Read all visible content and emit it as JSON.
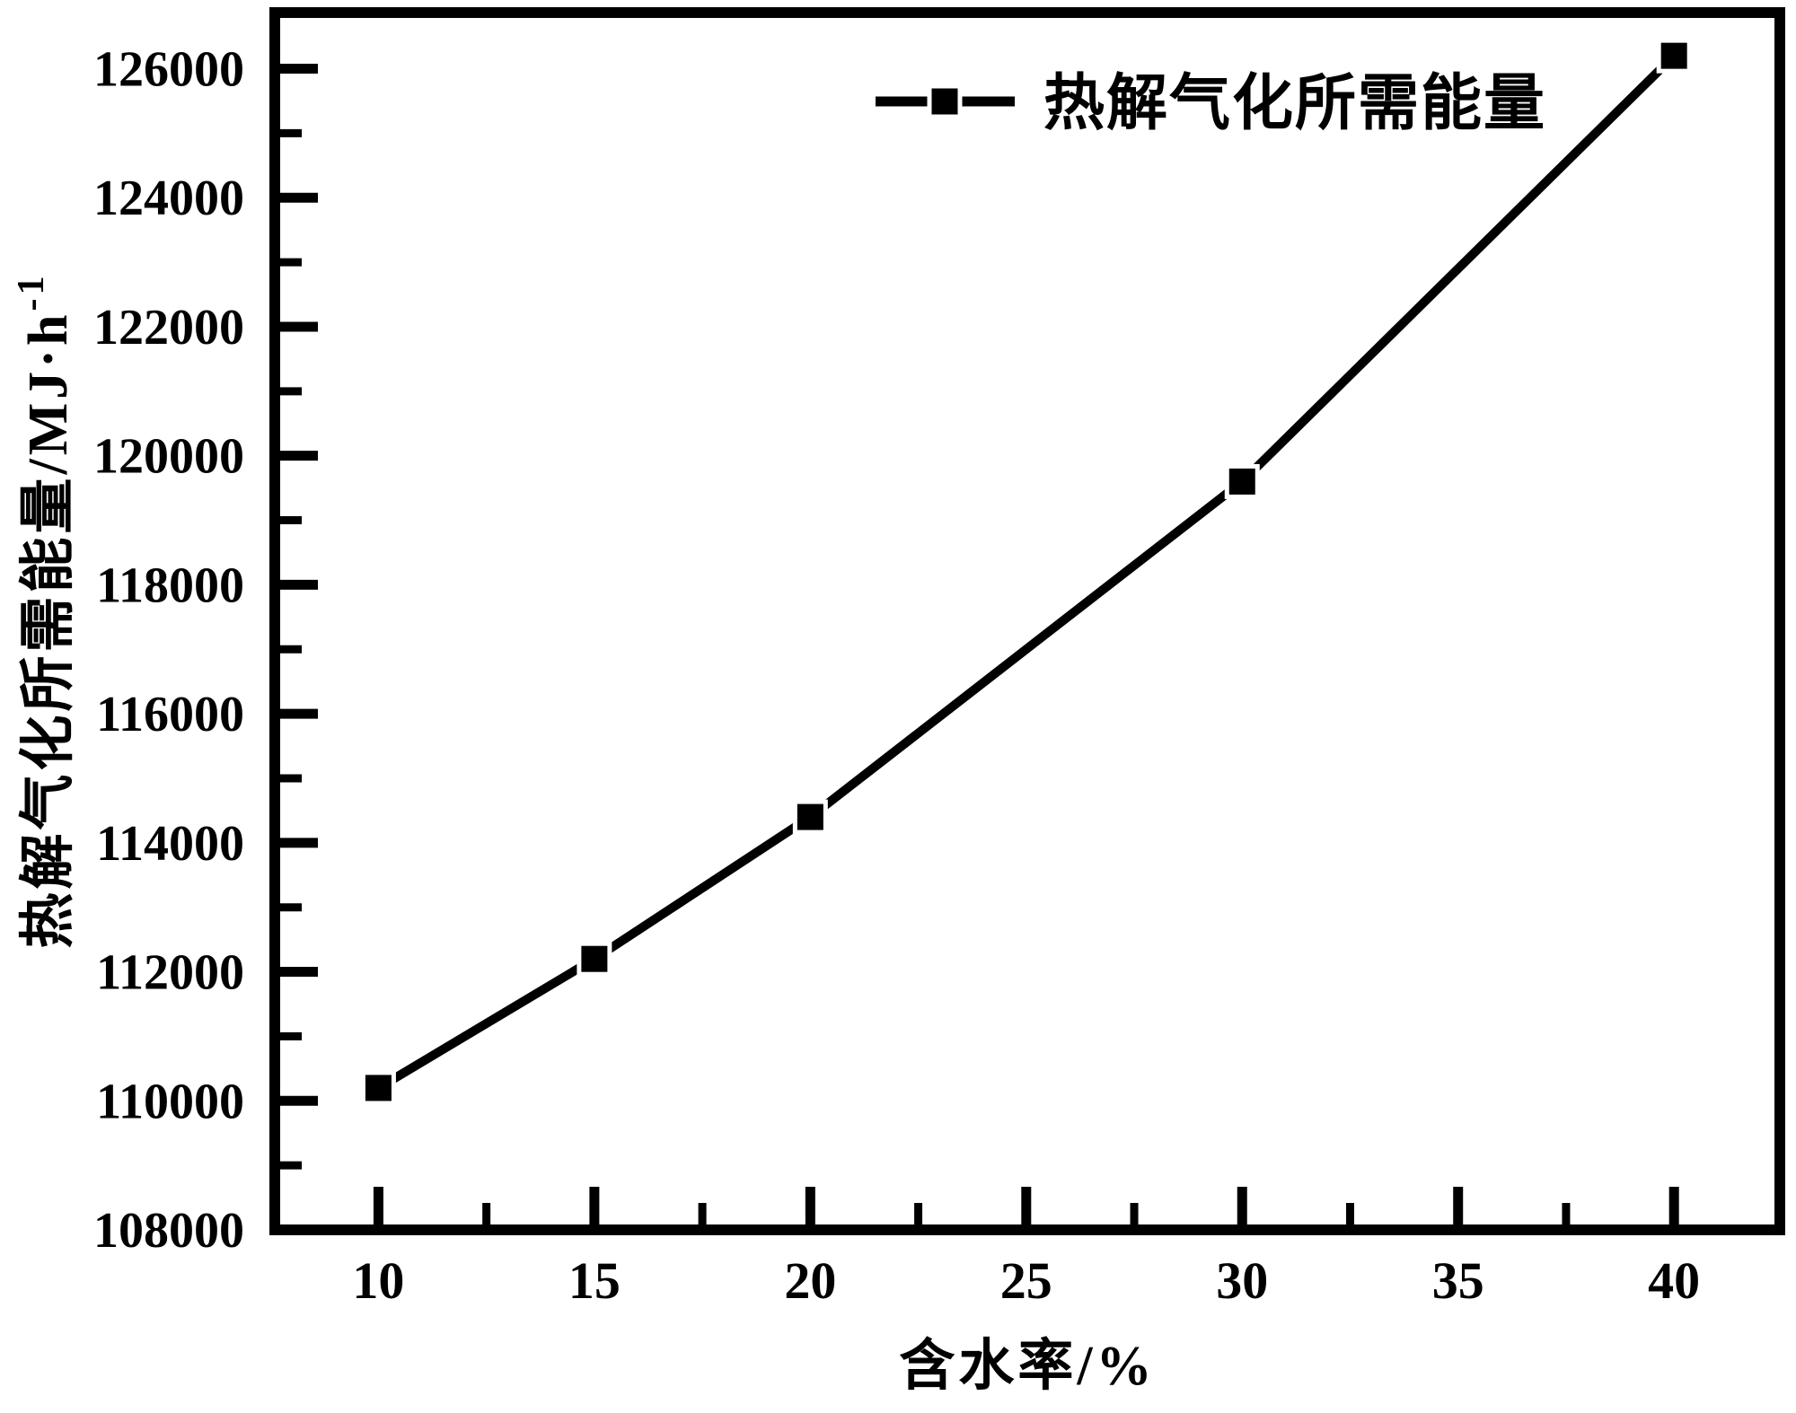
{
  "chart_data": {
    "type": "line",
    "title": "",
    "xlabel": "含水率/%",
    "ylabel": "热解气化所需能量/MJ·h⁻¹",
    "ylabel_main": "热解气化所需能量/MJ·h",
    "ylabel_superscript": "-1",
    "legend": {
      "position": "upper-center-inside",
      "entries": [
        "热解气化所需能量"
      ]
    },
    "series": [
      {
        "name": "热解气化所需能量",
        "marker": "filled-square",
        "color": "#000000",
        "points": [
          {
            "x": 10,
            "y": 110200
          },
          {
            "x": 15,
            "y": 112200
          },
          {
            "x": 20,
            "y": 114400
          },
          {
            "x": 30,
            "y": 119600
          },
          {
            "x": 40,
            "y": 126200
          }
        ]
      }
    ],
    "xlim": [
      7.6,
      42.45
    ],
    "ylim": [
      108000,
      126870
    ],
    "xticks": [
      10,
      15,
      20,
      25,
      30,
      35,
      40
    ],
    "yticks": [
      108000,
      110000,
      112000,
      114000,
      116000,
      118000,
      120000,
      122000,
      124000,
      126000
    ],
    "xticks_minor": [
      12.5,
      17.5,
      22.5,
      27.5,
      32.5,
      37.5
    ],
    "yticks_minor": [
      109000,
      111000,
      113000,
      115000,
      117000,
      119000,
      121000,
      123000,
      125000
    ],
    "grid": false,
    "tick_direction": "in",
    "colors": {
      "axis": "#000000",
      "background": "#ffffff",
      "line": "#000000"
    }
  }
}
